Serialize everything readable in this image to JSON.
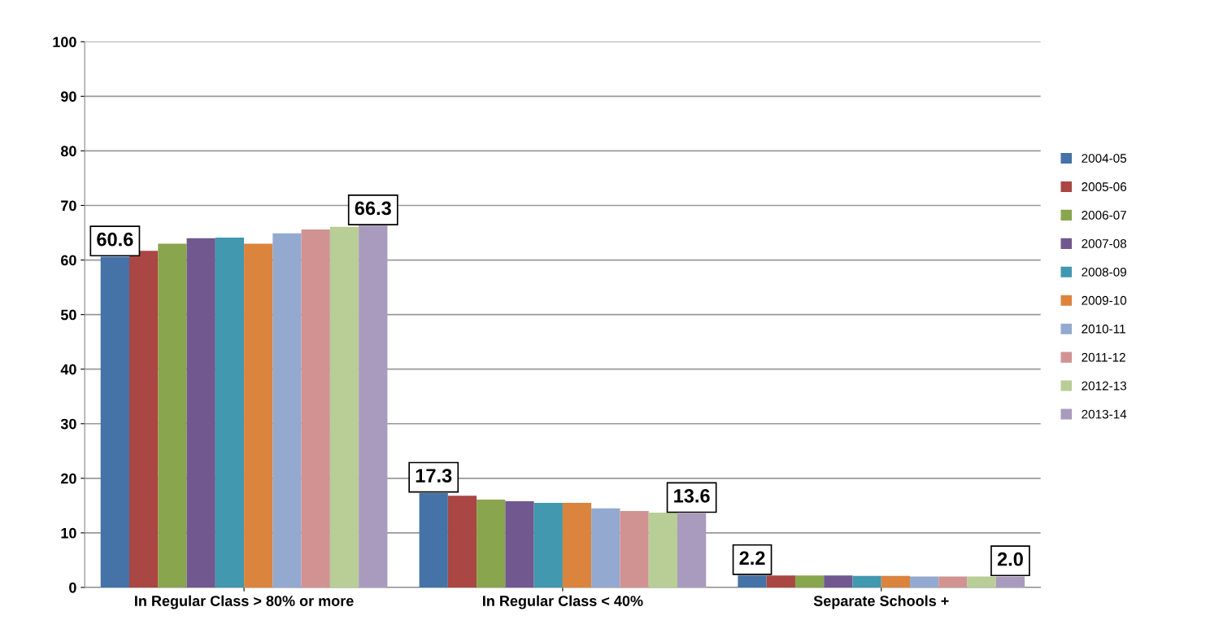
{
  "chart_data": {
    "type": "bar",
    "categories": [
      "In Regular Class > 80% or more",
      "In Regular Class < 40%",
      "Separate Schools +"
    ],
    "series": [
      {
        "name": "2004-05",
        "color": "#4572a7",
        "values": [
          60.6,
          17.3,
          2.2
        ],
        "value_labels": [
          "60.6",
          "17.3",
          "2.2"
        ]
      },
      {
        "name": "2005-06",
        "color": "#aa4643",
        "values": [
          61.7,
          16.8,
          2.2
        ]
      },
      {
        "name": "2006-07",
        "color": "#89a54e",
        "values": [
          63.0,
          16.1,
          2.2
        ]
      },
      {
        "name": "2007-08",
        "color": "#71588f",
        "values": [
          64.0,
          15.8,
          2.2
        ]
      },
      {
        "name": "2008-09",
        "color": "#4198af",
        "values": [
          64.1,
          15.5,
          2.1
        ]
      },
      {
        "name": "2009-10",
        "color": "#db843d",
        "values": [
          63.0,
          15.5,
          2.1
        ]
      },
      {
        "name": "2010-11",
        "color": "#93a9cf",
        "values": [
          64.9,
          14.5,
          2.0
        ]
      },
      {
        "name": "2011-12",
        "color": "#d19392",
        "values": [
          65.6,
          14.0,
          2.0
        ]
      },
      {
        "name": "2012-13",
        "color": "#b9cd96",
        "values": [
          66.1,
          13.7,
          2.0
        ]
      },
      {
        "name": "2013-14",
        "color": "#a99bbd",
        "values": [
          66.3,
          13.6,
          2.0
        ],
        "value_labels": [
          "66.3",
          "13.6",
          "2.0"
        ]
      }
    ],
    "ylim": [
      0,
      100
    ],
    "yticks": [
      0,
      10,
      20,
      30,
      40,
      50,
      60,
      70,
      80,
      90,
      100
    ],
    "grid": "y",
    "legend": "right"
  }
}
